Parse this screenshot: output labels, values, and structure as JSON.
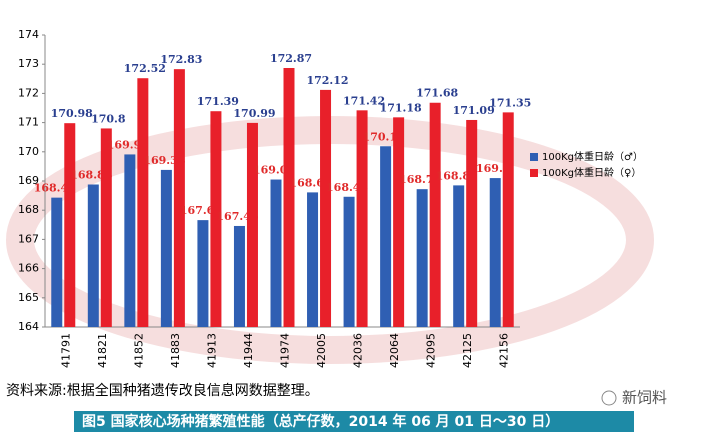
{
  "chart_data": {
    "type": "bar",
    "categories": [
      "41791",
      "41821",
      "41852",
      "41883",
      "41913",
      "41944",
      "41974",
      "42005",
      "42036",
      "42064",
      "42095",
      "42125",
      "42156"
    ],
    "series": [
      {
        "name": "100Kg体重日龄（♂）",
        "color": "#2f5fb3",
        "label_color": "#e02a2a",
        "values": [
          168.43,
          168.88,
          169.91,
          169.38,
          167.66,
          167.46,
          169.05,
          168.61,
          168.46,
          170.19,
          168.72,
          168.85,
          169.1
        ]
      },
      {
        "name": "100Kg体重日龄（♀）",
        "color": "#e8202a",
        "label_color": "#2a3f8f",
        "values": [
          170.98,
          170.8,
          172.52,
          172.83,
          171.39,
          170.99,
          172.87,
          172.12,
          171.42,
          171.18,
          171.68,
          171.09,
          171.35
        ]
      }
    ],
    "ylim": [
      164,
      174
    ],
    "yticks": [
      164,
      165,
      166,
      167,
      168,
      169,
      170,
      171,
      172,
      173,
      174
    ],
    "grid": false
  },
  "source": "资料来源:根据全国种猪遗传改良信息网数据整理。",
  "brand": "新饲料",
  "caption": "图5  国家核心场种猪繁殖性能（总产仔数，2014 年 06 月 01 日～30 日）"
}
